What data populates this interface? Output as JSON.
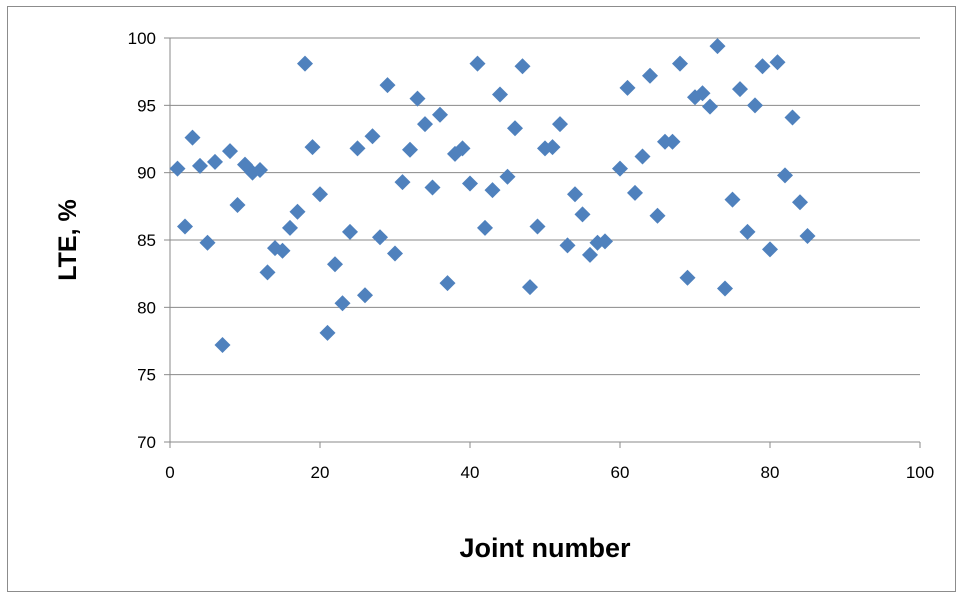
{
  "chart_data": {
    "type": "scatter",
    "title": "",
    "xlabel": "Joint number",
    "ylabel": "LTE, %",
    "xlim": [
      0,
      100
    ],
    "ylim": [
      70,
      100
    ],
    "x_ticks": [
      0,
      20,
      40,
      60,
      80,
      100
    ],
    "y_ticks": [
      70,
      75,
      80,
      85,
      90,
      95,
      100
    ],
    "grid": "horizontal major gridlines",
    "legend": "none",
    "marker": "diamond",
    "marker_color": "#4f81bd",
    "series": [
      {
        "x": [
          1,
          2,
          3,
          4,
          5,
          6,
          7,
          8,
          9,
          10,
          11,
          12,
          13,
          14,
          15,
          16,
          17,
          18,
          19,
          20,
          21,
          22,
          23,
          24,
          25,
          26,
          27,
          28,
          29,
          30,
          31,
          32,
          33,
          34,
          35,
          36,
          37,
          38,
          39,
          40,
          41,
          42,
          43,
          44,
          45,
          46,
          47,
          48,
          49,
          50,
          51,
          52,
          53,
          54,
          55,
          56,
          57,
          58,
          60,
          61,
          62,
          63,
          64,
          65,
          66,
          67,
          68,
          69,
          70,
          71,
          72,
          73,
          74,
          75,
          76,
          77,
          78,
          79,
          80,
          81,
          82,
          83,
          84,
          85
        ],
        "y": [
          90.3,
          86.0,
          92.6,
          90.5,
          84.8,
          90.8,
          77.2,
          91.6,
          87.6,
          90.6,
          90.0,
          90.2,
          82.6,
          84.4,
          84.2,
          85.9,
          87.1,
          98.1,
          91.9,
          88.4,
          78.1,
          83.2,
          80.3,
          85.6,
          91.8,
          80.9,
          92.7,
          85.2,
          96.5,
          84.0,
          89.3,
          91.7,
          95.5,
          93.6,
          88.9,
          94.3,
          81.8,
          91.4,
          91.8,
          89.2,
          98.1,
          85.9,
          88.7,
          95.8,
          89.7,
          93.3,
          97.9,
          81.5,
          86.0,
          91.8,
          91.9,
          93.6,
          84.6,
          88.4,
          86.9,
          83.9,
          84.8,
          84.9,
          90.3,
          96.3,
          88.5,
          91.2,
          97.2,
          86.8,
          92.3,
          92.3,
          98.1,
          82.2,
          95.6,
          95.9,
          94.9,
          99.4,
          81.4,
          88.0,
          96.2,
          85.6,
          95.0,
          97.9,
          84.3,
          98.2,
          89.8,
          94.1,
          87.8,
          85.3
        ]
      }
    ]
  }
}
